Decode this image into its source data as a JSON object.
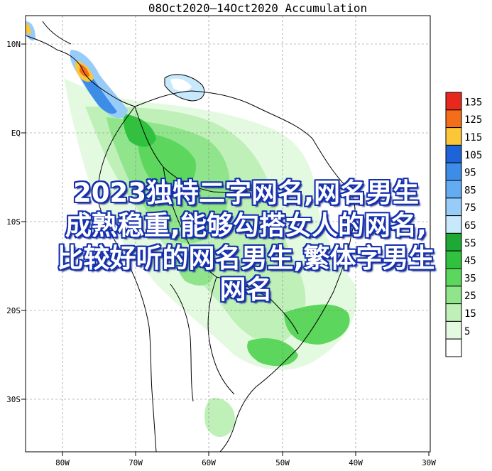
{
  "map": {
    "title": "08Oct2020—14Oct2020 Accumulation",
    "lon_ticks": [
      "80W",
      "70W",
      "60W",
      "50W",
      "40W",
      "30W"
    ],
    "lat_ticks": [
      "10N",
      "EQ",
      "10S",
      "20S",
      "30S"
    ]
  },
  "legend": {
    "levels": [
      {
        "label": "135",
        "color": "#e8281c"
      },
      {
        "label": "125",
        "color": "#f46d18"
      },
      {
        "label": "115",
        "color": "#fbc638"
      },
      {
        "label": "105",
        "color": "#1c64d8"
      },
      {
        "label": "95",
        "color": "#3c8ce8"
      },
      {
        "label": "85",
        "color": "#64acf2"
      },
      {
        "label": "75",
        "color": "#98ccf8"
      },
      {
        "label": "65",
        "color": "#c8e8fc"
      },
      {
        "label": "55",
        "color": "#1ea834"
      },
      {
        "label": "45",
        "color": "#30c23e"
      },
      {
        "label": "35",
        "color": "#5cd65c"
      },
      {
        "label": "25",
        "color": "#90e48c"
      },
      {
        "label": "15",
        "color": "#bef0b8"
      },
      {
        "label": "5",
        "color": "#e4fae0"
      }
    ]
  },
  "overlay": {
    "line1": "2023独特二字网名,网名男生",
    "line2": "成熟稳重,能够勾搭女人的网名,",
    "line3": "比较好听的网名男生,繁体字男生",
    "line4": "网名"
  }
}
